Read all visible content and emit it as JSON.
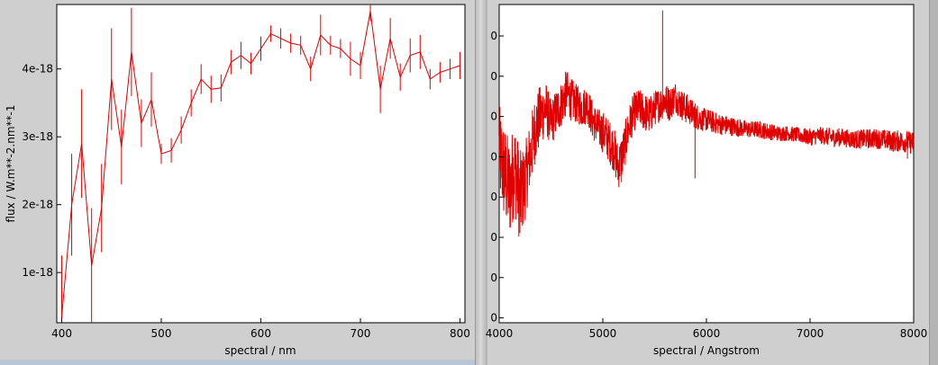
{
  "colors": {
    "series": "#e00000",
    "plot_bg": "#ffffff",
    "frame": "#000000"
  },
  "chart_data": [
    {
      "type": "line",
      "xlabel": "spectral / nm",
      "ylabel": "flux / W.m**-2.nm**-1",
      "xlim": [
        395,
        805
      ],
      "ylim": [
        2.6e-19,
        4.95e-18
      ],
      "xticks": [
        400,
        500,
        600,
        700,
        800
      ],
      "yticks": [
        1e-18,
        2e-18,
        3e-18,
        4e-18
      ],
      "xtick_labels": [
        "400",
        "500",
        "600",
        "700",
        "800"
      ],
      "ytick_labels": [
        "1e-18",
        "2e-18",
        "3e-18",
        "4e-18"
      ],
      "error_bars": true,
      "series": [
        {
          "x": [
            400,
            410,
            420,
            430,
            440,
            450,
            460,
            470,
            480,
            490,
            500,
            510,
            520,
            530,
            540,
            550,
            560,
            570,
            580,
            590,
            600,
            610,
            620,
            630,
            640,
            650,
            660,
            670,
            680,
            690,
            700,
            710,
            720,
            730,
            740,
            750,
            760,
            770,
            780,
            790,
            800
          ],
          "y": [
            3.5e-19,
            2e-18,
            2.9e-18,
            1.1e-18,
            1.95e-18,
            3.85e-18,
            2.85e-18,
            4.25e-18,
            3.2e-18,
            3.55e-18,
            2.75e-18,
            2.8e-18,
            3.1e-18,
            3.5e-18,
            3.85e-18,
            3.7e-18,
            3.72e-18,
            4.1e-18,
            4.2e-18,
            4.08e-18,
            4.3e-18,
            4.52e-18,
            4.45e-18,
            4.38e-18,
            4.35e-18,
            4e-18,
            4.5e-18,
            4.35e-18,
            4.3e-18,
            4.15e-18,
            4.05e-18,
            4.85e-18,
            3.7e-18,
            4.45e-18,
            3.88e-18,
            4.2e-18,
            4.25e-18,
            3.85e-18,
            3.95e-18,
            4e-18,
            4.05e-18
          ],
          "err": [
            9e-19,
            7.5e-19,
            8e-19,
            8.5e-19,
            6.5e-19,
            7.5e-19,
            5.5e-19,
            6.5e-19,
            3.5e-19,
            4e-19,
            1.5e-19,
            1.8e-19,
            2e-19,
            2e-19,
            2.2e-19,
            2e-19,
            2e-19,
            1.8e-19,
            2e-19,
            1.6e-19,
            1.8e-19,
            1.2e-19,
            1.5e-19,
            1.4e-19,
            1.4e-19,
            1.8e-19,
            3e-19,
            1.4e-19,
            1.4e-19,
            2.5e-19,
            2e-19,
            1.5e-19,
            3.5e-19,
            3e-19,
            2e-19,
            2.5e-19,
            2.5e-19,
            1.5e-19,
            1.5e-19,
            1.5e-19,
            2e-19
          ]
        }
      ]
    },
    {
      "type": "line",
      "xlabel": "spectral / Angstrom",
      "ylabel": "",
      "xlim": [
        4000,
        8000
      ],
      "ylim": [
        -4.6,
        3.55
      ],
      "xticks": [
        4000,
        5000,
        6000,
        7000,
        8000
      ],
      "xtick_labels": [
        "4000",
        "5000",
        "6000",
        "7000",
        "8000"
      ],
      "ytick_count": 8,
      "ytick_labels": [
        "0",
        "0",
        "0",
        "0",
        "0",
        "0",
        "0",
        "0"
      ],
      "series": [
        {
          "x": [
            4000,
            4050,
            4100,
            4150,
            4200,
            4250,
            4300,
            4350,
            4400,
            4450,
            4500,
            4550,
            4600,
            4650,
            4700,
            4750,
            4800,
            4850,
            4900,
            4950,
            5000,
            5050,
            5100,
            5150,
            5200,
            5250,
            5300,
            5350,
            5400,
            5450,
            5500,
            5550,
            5600,
            5650,
            5700,
            5750,
            5800,
            5850,
            5900,
            5950,
            6000,
            6100,
            6200,
            6300,
            6400,
            6500,
            6600,
            6700,
            6800,
            6900,
            7000,
            7100,
            7200,
            7300,
            7400,
            7500,
            7600,
            7700,
            7800,
            7900,
            8000
          ],
          "y": [
            -0.2,
            -0.8,
            -1.2,
            -0.6,
            -1.4,
            -1.0,
            -0.3,
            0.4,
            0.7,
            0.9,
            0.5,
            0.8,
            1.0,
            1.3,
            1.1,
            1.0,
            0.9,
            1.0,
            0.6,
            0.4,
            0.3,
            0.1,
            -0.1,
            -0.6,
            -0.2,
            0.4,
            0.8,
            0.9,
            0.8,
            0.7,
            0.9,
            1.0,
            1.1,
            1.0,
            1.2,
            1.0,
            0.9,
            0.8,
            0.7,
            0.6,
            0.6,
            0.5,
            0.45,
            0.4,
            0.35,
            0.35,
            0.3,
            0.25,
            0.25,
            0.2,
            0.15,
            0.2,
            0.15,
            0.15,
            0.1,
            0.1,
            0.12,
            0.1,
            0.05,
            0.05,
            0.0
          ],
          "noise": [
            1.2,
            1.3,
            1.3,
            1.2,
            1.2,
            1.0,
            0.9,
            0.9,
            0.8,
            0.7,
            0.6,
            0.6,
            0.6,
            0.6,
            0.55,
            0.5,
            0.5,
            0.5,
            0.5,
            0.5,
            0.55,
            0.55,
            0.6,
            0.6,
            0.6,
            0.55,
            0.5,
            0.5,
            0.5,
            0.5,
            0.45,
            0.45,
            0.45,
            0.45,
            0.4,
            0.4,
            0.4,
            0.35,
            0.35,
            0.3,
            0.3,
            0.28,
            0.26,
            0.24,
            0.22,
            0.22,
            0.22,
            0.2,
            0.2,
            0.2,
            0.22,
            0.22,
            0.24,
            0.24,
            0.24,
            0.25,
            0.26,
            0.26,
            0.28,
            0.28,
            0.3
          ]
        }
      ],
      "features": [
        {
          "x": 5577,
          "y": 3.4
        },
        {
          "x": 4200,
          "y": -2.3
        },
        {
          "x": 5890,
          "y": -0.9
        },
        {
          "x": 5180,
          "y": -1.0
        },
        {
          "x": 7940,
          "y": -0.4
        }
      ]
    }
  ]
}
